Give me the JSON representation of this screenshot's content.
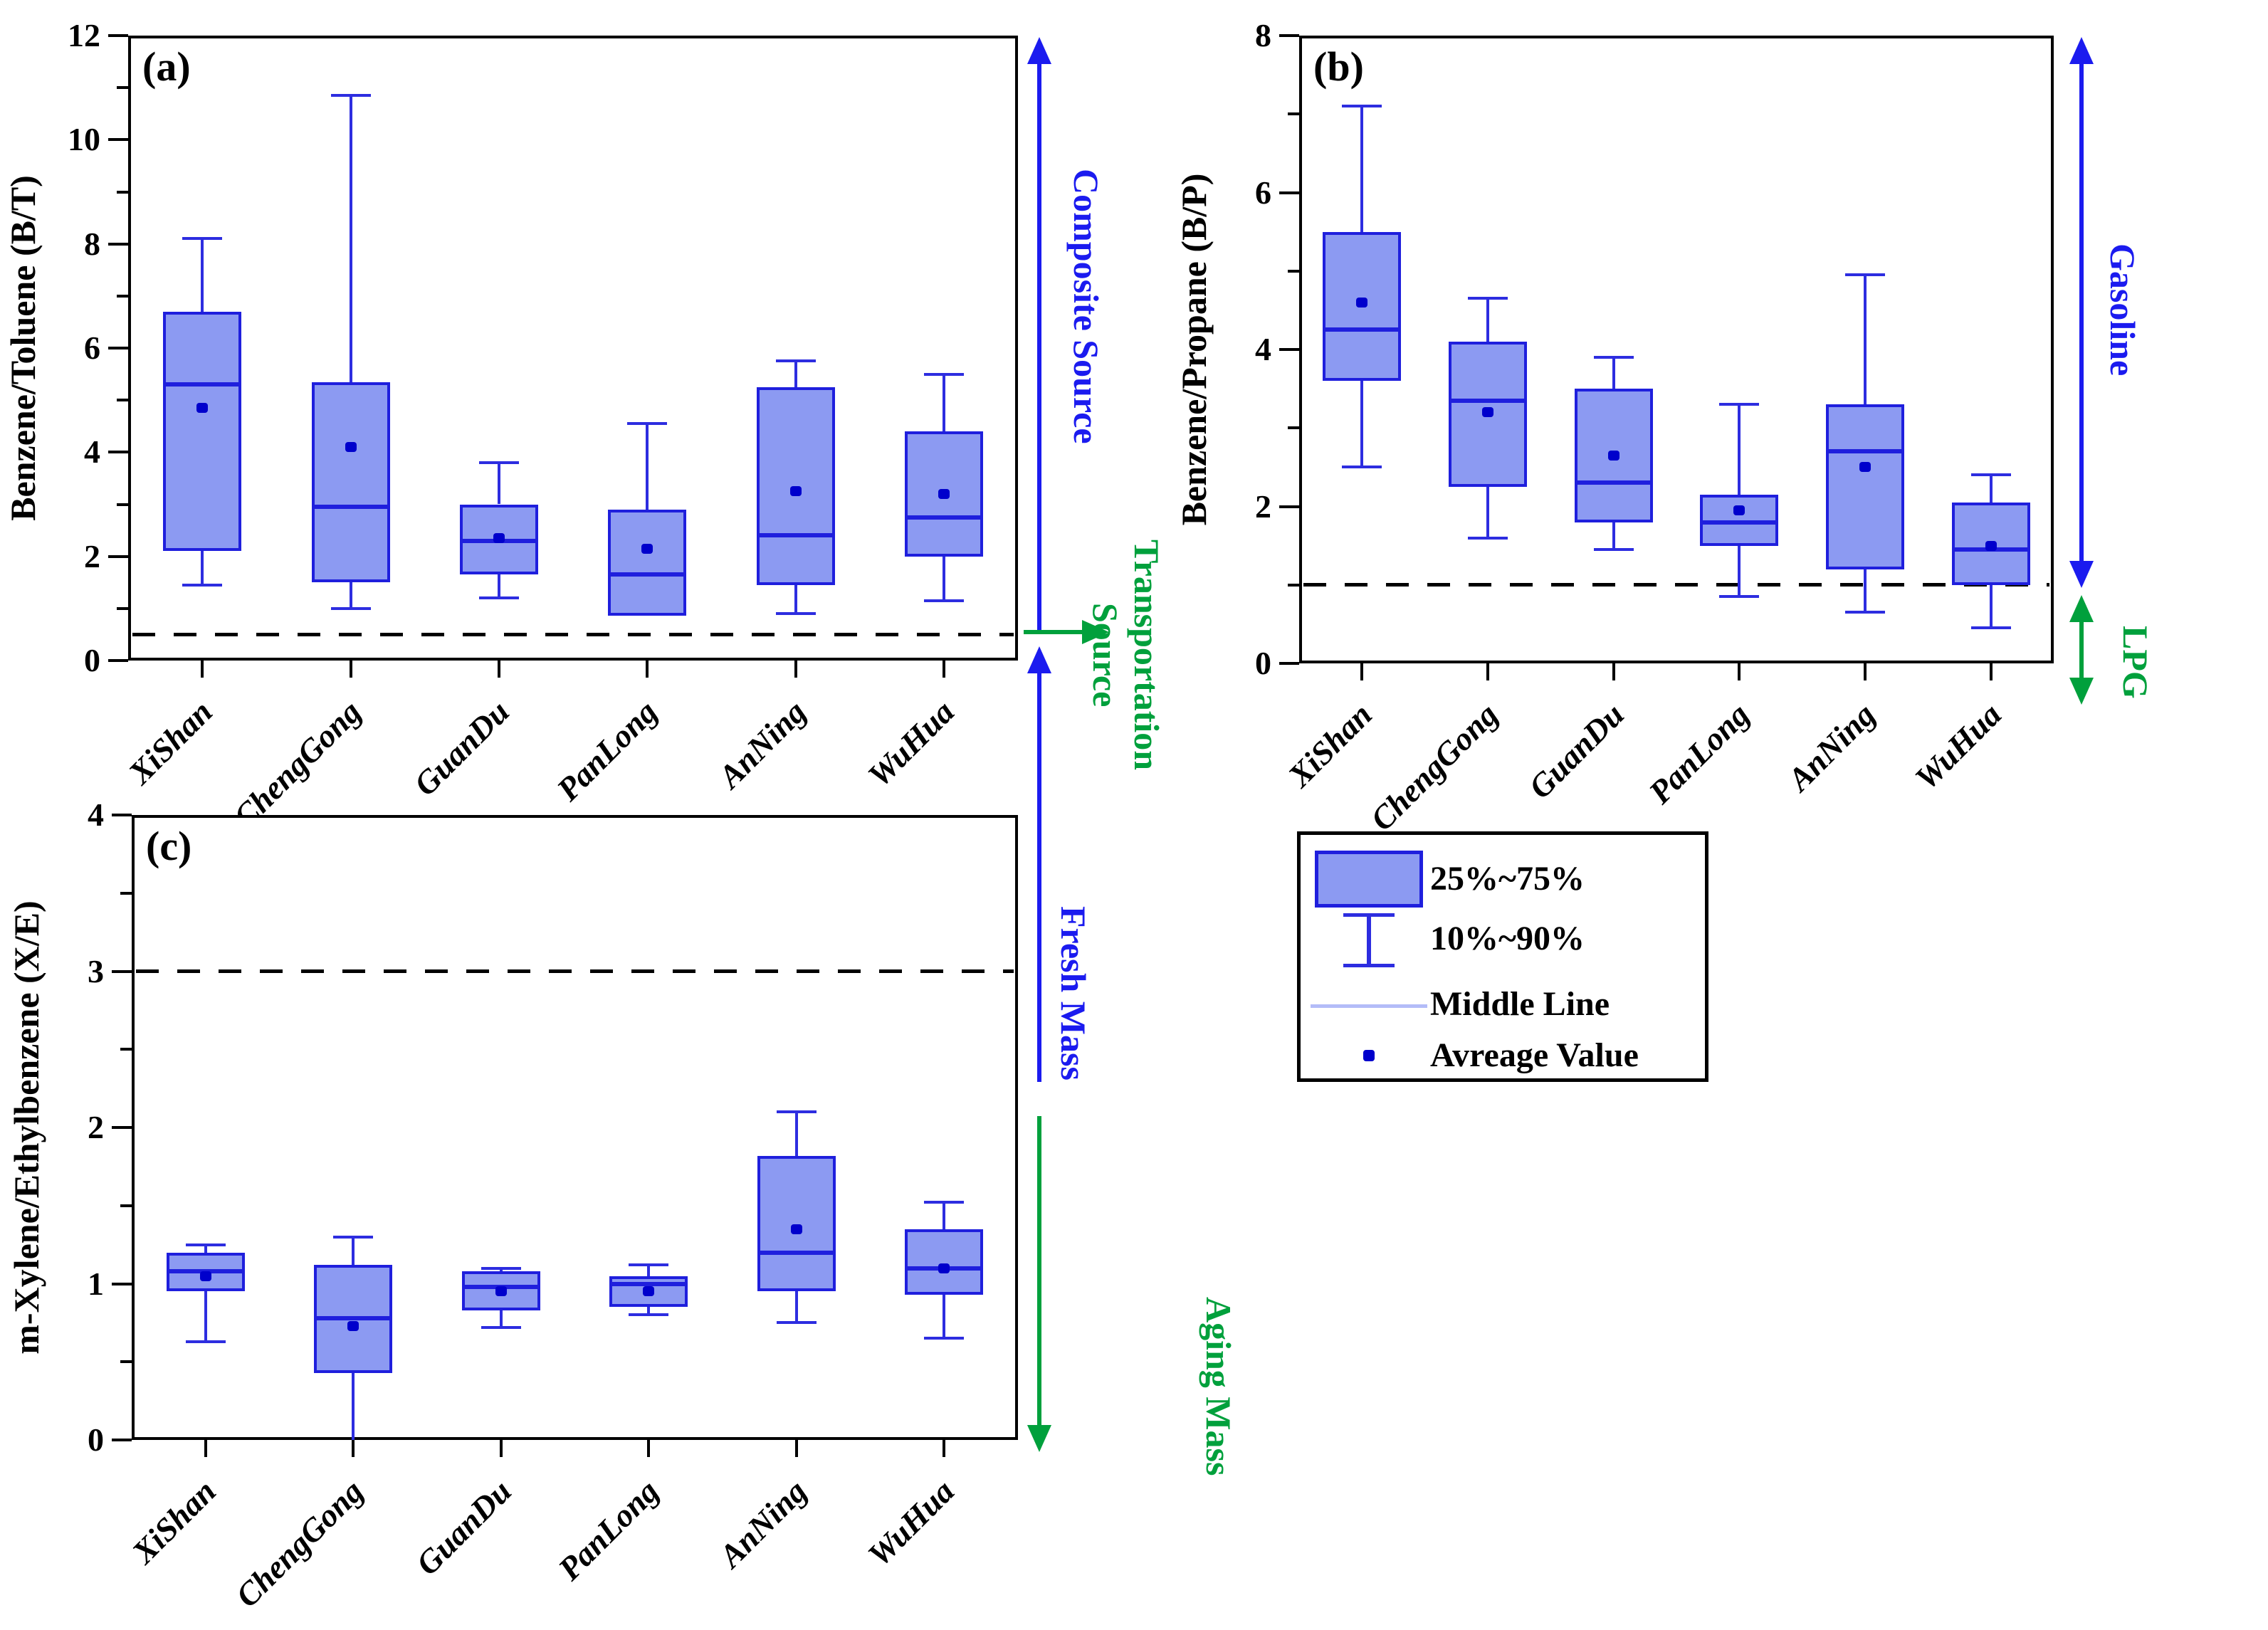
{
  "page": {
    "background": "#ffffff"
  },
  "colors": {
    "box_fill": "#8c9af2",
    "box_edge": "#1f1fdd",
    "whisker": "#2d2de0",
    "mean_dot": "#0000cc",
    "dashed_reference": "#000000",
    "annotation_blue": "#1b1bef",
    "annotation_green": "#00a03c",
    "legend_middle_line": "#b3bcf8",
    "axis": "#000000"
  },
  "chart_data": [
    {
      "type": "box",
      "id": "a",
      "panel_label": "(a)",
      "ylabel": "Benzene/Toluene (B/T)",
      "ylim": [
        0,
        12
      ],
      "yticks": [
        0,
        2,
        4,
        6,
        8,
        10,
        12
      ],
      "yminorticks": [
        1,
        3,
        5,
        7,
        9,
        11
      ],
      "reference_line": 0.5,
      "grid": false,
      "categories": [
        "XiShan",
        "ChengGong",
        "GuanDu",
        "PanLong",
        "AnNing",
        "WuHua"
      ],
      "series": [
        {
          "name": "XiShan",
          "p10": 1.45,
          "q1": 2.1,
          "median": 5.3,
          "q3": 6.7,
          "p90": 8.1,
          "mean": 4.85
        },
        {
          "name": "ChengGong",
          "p10": 1.0,
          "q1": 1.5,
          "median": 2.95,
          "q3": 5.35,
          "p90": 10.85,
          "mean": 4.1
        },
        {
          "name": "GuanDu",
          "p10": 1.2,
          "q1": 1.65,
          "median": 2.3,
          "q3": 3.0,
          "p90": 3.8,
          "mean": 2.35
        },
        {
          "name": "PanLong",
          "p10": 0.86,
          "q1": 0.86,
          "median": 1.65,
          "q3": 2.9,
          "p90": 4.55,
          "mean": 2.15
        },
        {
          "name": "AnNing",
          "p10": 0.9,
          "q1": 1.45,
          "median": 2.4,
          "q3": 5.25,
          "p90": 5.75,
          "mean": 3.25
        },
        {
          "name": "WuHua",
          "p10": 1.15,
          "q1": 2.0,
          "median": 2.75,
          "q3": 4.4,
          "p90": 5.5,
          "mean": 3.2
        }
      ]
    },
    {
      "type": "box",
      "id": "b",
      "panel_label": "(b)",
      "ylabel": "Benzene/Propane (B/P)",
      "ylim": [
        0,
        8
      ],
      "yticks": [
        0,
        2,
        4,
        6,
        8
      ],
      "yminorticks": [
        1,
        3,
        5,
        7
      ],
      "reference_line": 1.0,
      "grid": false,
      "categories": [
        "XiShan",
        "ChengGong",
        "GuanDu",
        "PanLong",
        "AnNing",
        "WuHua"
      ],
      "series": [
        {
          "name": "XiShan",
          "p10": 2.5,
          "q1": 3.6,
          "median": 4.25,
          "q3": 5.5,
          "p90": 7.1,
          "mean": 4.6
        },
        {
          "name": "ChengGong",
          "p10": 1.6,
          "q1": 2.25,
          "median": 3.35,
          "q3": 4.1,
          "p90": 4.65,
          "mean": 3.2
        },
        {
          "name": "GuanDu",
          "p10": 1.45,
          "q1": 1.8,
          "median": 2.3,
          "q3": 3.5,
          "p90": 3.9,
          "mean": 2.65
        },
        {
          "name": "PanLong",
          "p10": 0.85,
          "q1": 1.5,
          "median": 1.8,
          "q3": 2.15,
          "p90": 3.3,
          "mean": 1.95
        },
        {
          "name": "AnNing",
          "p10": 0.65,
          "q1": 1.2,
          "median": 2.7,
          "q3": 3.3,
          "p90": 4.95,
          "mean": 2.5
        },
        {
          "name": "WuHua",
          "p10": 0.45,
          "q1": 1.0,
          "median": 1.45,
          "q3": 2.05,
          "p90": 2.4,
          "mean": 1.5
        }
      ]
    },
    {
      "type": "box",
      "id": "c",
      "panel_label": "(c)",
      "ylabel": "m-Xylene/Ethylbenzene (X/E)",
      "ylim": [
        0,
        4
      ],
      "yticks": [
        0,
        1,
        2,
        3,
        4
      ],
      "yminorticks": [
        0.5,
        1.5,
        2.5,
        3.5
      ],
      "reference_line": 3.0,
      "grid": false,
      "categories": [
        "XiShan",
        "ChengGong",
        "GuanDu",
        "PanLong",
        "AnNing",
        "WuHua"
      ],
      "series": [
        {
          "name": "XiShan",
          "p10": 0.63,
          "q1": 0.95,
          "median": 1.08,
          "q3": 1.2,
          "p90": 1.25,
          "mean": 1.05
        },
        {
          "name": "ChengGong",
          "p10": 0.0,
          "q1": 0.43,
          "median": 0.78,
          "q3": 1.12,
          "p90": 1.3,
          "mean": 0.73
        },
        {
          "name": "GuanDu",
          "p10": 0.72,
          "q1": 0.83,
          "median": 0.98,
          "q3": 1.08,
          "p90": 1.1,
          "mean": 0.95
        },
        {
          "name": "PanLong",
          "p10": 0.8,
          "q1": 0.85,
          "median": 1.0,
          "q3": 1.05,
          "p90": 1.12,
          "mean": 0.95
        },
        {
          "name": "AnNing",
          "p10": 0.75,
          "q1": 0.95,
          "median": 1.2,
          "q3": 1.82,
          "p90": 2.1,
          "mean": 1.35
        },
        {
          "name": "WuHua",
          "p10": 0.65,
          "q1": 0.93,
          "median": 1.1,
          "q3": 1.35,
          "p90": 1.52,
          "mean": 1.1
        }
      ]
    }
  ],
  "legend": {
    "items": [
      {
        "symbol": "box-swatch",
        "label": "25%~75%"
      },
      {
        "symbol": "whisker-swatch",
        "label": "10%~90%"
      },
      {
        "symbol": "middle-line-swatch",
        "label": "Middle Line"
      },
      {
        "symbol": "mean-dot-swatch",
        "label": "Avreage Value"
      }
    ]
  },
  "annotations": {
    "composite_source": "Composite Source",
    "transportation_line1": "Transportation",
    "transportation_line2": "Source",
    "fresh_mass": "Fresh Mass",
    "aging_mass": "Aging Mass",
    "gasoline": "Gasoline",
    "lpg": "LPG"
  }
}
